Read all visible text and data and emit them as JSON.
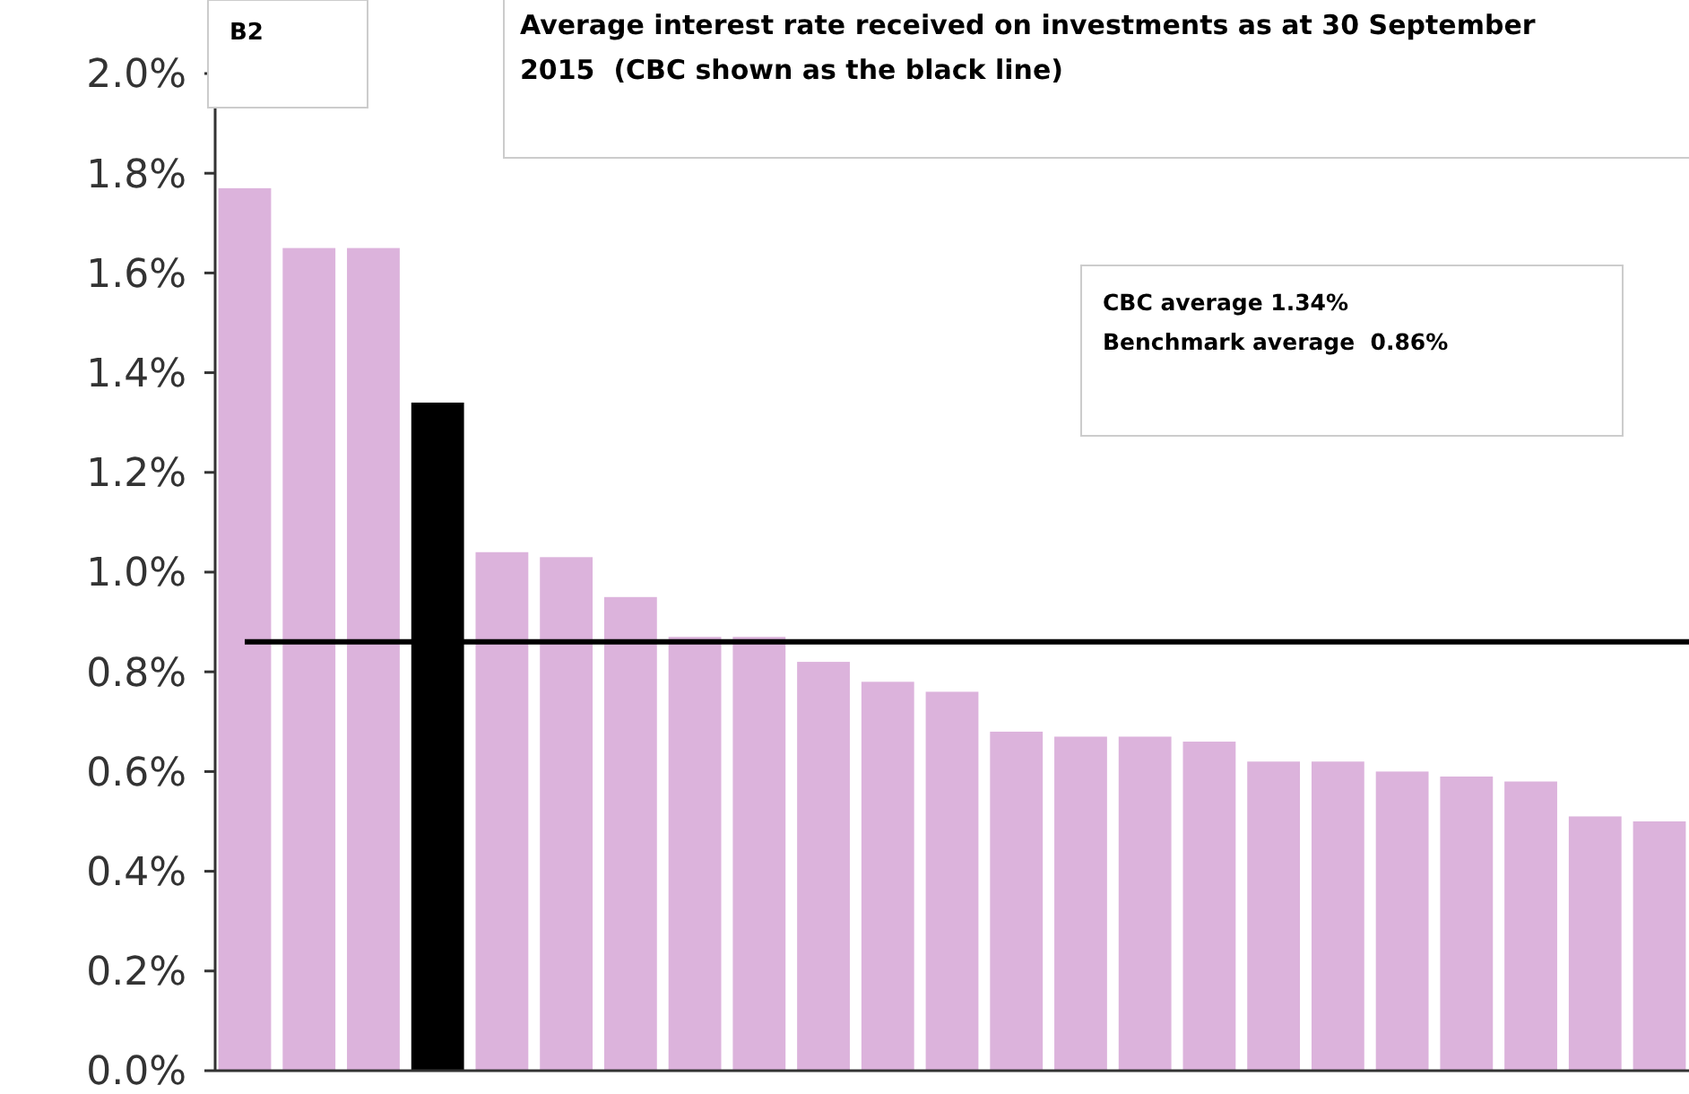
{
  "chart_data": {
    "type": "bar",
    "title": "Average interest rate received on investments as at 30 September 2015  (CBC shown as the black line)",
    "annotations": [
      "B2",
      "CBC average 1.34%",
      "Benchmark average  0.86%"
    ],
    "categories": [
      null,
      null,
      null,
      null,
      null,
      null,
      null,
      null,
      null,
      null,
      null,
      null,
      null,
      null,
      null,
      null,
      null,
      null,
      null,
      null,
      null,
      null,
      null
    ],
    "values": [
      1.77,
      1.65,
      1.65,
      1.34,
      1.04,
      1.03,
      0.95,
      0.87,
      0.87,
      0.82,
      0.78,
      0.76,
      0.68,
      0.67,
      0.67,
      0.66,
      0.62,
      0.62,
      0.6,
      0.59,
      0.58,
      0.51,
      0.5
    ],
    "colors": [
      "#dcb3dc",
      "#dcb3dc",
      "#dcb3dc",
      "#000000",
      "#dcb3dc",
      "#dcb3dc",
      "#dcb3dc",
      "#dcb3dc",
      "#dcb3dc",
      "#dcb3dc",
      "#dcb3dc",
      "#dcb3dc",
      "#dcb3dc",
      "#dcb3dc",
      "#dcb3dc",
      "#dcb3dc",
      "#dcb3dc",
      "#dcb3dc",
      "#dcb3dc",
      "#dcb3dc",
      "#dcb3dc",
      "#dcb3dc",
      "#dcb3dc"
    ],
    "ylim": [
      0,
      2.0
    ],
    "yticks": [
      {
        "value": 0,
        "label": "0.0%"
      },
      {
        "value": 0.2,
        "label": "0.2%"
      },
      {
        "value": 0.4,
        "label": "0.4%"
      },
      {
        "value": 0.6,
        "label": "0.6%"
      },
      {
        "value": 0.8,
        "label": "0.8%"
      },
      {
        "value": 1.0,
        "label": "1.0%"
      },
      {
        "value": 1.2,
        "label": "1.2%"
      },
      {
        "value": 1.4,
        "label": "1.4%"
      },
      {
        "value": 1.6,
        "label": "1.6%"
      },
      {
        "value": 1.8,
        "label": "1.8%"
      },
      {
        "value": 2.0,
        "label": "2.0%"
      }
    ],
    "ref_lines": [
      {
        "axis": "y",
        "value": 0.86,
        "color": "#000000"
      }
    ],
    "grid": false
  }
}
